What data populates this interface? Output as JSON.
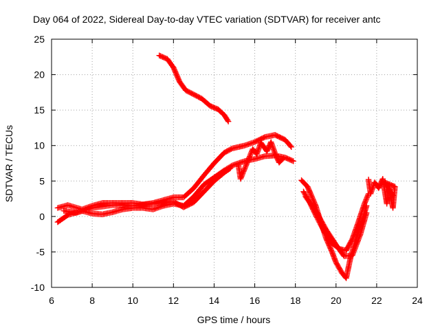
{
  "chart_data": {
    "type": "scatter",
    "title": "Day 064 of 2022, Sidereal Day-to-day VTEC variation (SDTVAR) for receiver antc",
    "xlabel": "GPS time / hours",
    "ylabel": "SDTVAR / TECUs",
    "xlim": [
      6,
      24
    ],
    "ylim": [
      -10,
      25
    ],
    "xticks": [
      6,
      8,
      10,
      12,
      14,
      16,
      18,
      20,
      22,
      24
    ],
    "yticks": [
      -10,
      -5,
      0,
      5,
      10,
      15,
      20,
      25
    ],
    "grid": true,
    "marker": "+",
    "color": "#ff0000",
    "series": [
      {
        "name": "high-arc",
        "x": [
          11.3,
          11.7,
          12.0,
          12.3,
          12.6,
          13.0,
          13.4,
          13.8,
          14.2,
          14.5,
          14.7
        ],
        "y": [
          22.7,
          22.2,
          21.0,
          19.0,
          17.8,
          17.2,
          16.6,
          15.6,
          15.1,
          14.3,
          13.4
        ]
      },
      {
        "name": "track-upper",
        "x": [
          6.3,
          6.8,
          7.5,
          8.0,
          8.5,
          9.0,
          9.5,
          10.0,
          10.5,
          11.0,
          11.5,
          12.0,
          12.5,
          13.0,
          13.5,
          14.0,
          14.5,
          14.9,
          15.5,
          16.0,
          16.5,
          17.0,
          17.5,
          17.8
        ],
        "y": [
          1.2,
          1.6,
          1.0,
          1.5,
          1.9,
          1.9,
          1.9,
          1.9,
          1.7,
          1.9,
          2.3,
          2.7,
          2.7,
          4.0,
          5.8,
          7.5,
          9.0,
          9.6,
          10.0,
          10.5,
          11.2,
          11.5,
          10.8,
          9.8
        ]
      },
      {
        "name": "track-lower",
        "x": [
          6.3,
          6.8,
          7.5,
          8.0,
          8.5,
          9.0,
          9.5,
          10.0,
          10.5,
          11.0,
          11.5,
          12.0,
          12.5,
          13.0,
          13.5,
          14.0,
          14.5,
          14.9,
          15.5,
          16.0,
          16.5,
          17.0,
          17.5,
          17.9
        ],
        "y": [
          -0.8,
          0.2,
          0.8,
          0.4,
          0.3,
          0.6,
          1.0,
          1.2,
          1.2,
          1.0,
          1.5,
          1.8,
          1.5,
          2.8,
          4.5,
          5.5,
          6.5,
          7.2,
          7.8,
          8.1,
          8.5,
          8.6,
          8.3,
          7.8
        ]
      },
      {
        "name": "mid-track",
        "x": [
          6.6,
          7.2,
          8.0,
          9.0,
          10.0,
          11.0,
          12.0,
          12.5,
          13.0,
          13.5,
          14.0,
          14.5,
          14.8
        ],
        "y": [
          0.8,
          0.5,
          1.2,
          1.6,
          1.5,
          1.8,
          2.1,
          1.3,
          2.0,
          3.5,
          5.0,
          6.2,
          6.8
        ]
      },
      {
        "name": "scatter-16",
        "x": [
          15.2,
          15.3,
          15.9,
          16.1,
          16.3,
          16.6,
          16.8,
          17.0,
          17.2,
          17.4
        ],
        "y": [
          7.2,
          5.3,
          9.5,
          8.8,
          10.4,
          9.2,
          10.5,
          8.9,
          7.6,
          8.2
        ]
      },
      {
        "name": "dip-outer",
        "x": [
          18.3,
          18.6,
          19.0,
          19.5,
          19.8,
          20.0,
          20.3,
          20.5,
          20.7,
          21.0,
          21.3,
          21.5
        ],
        "y": [
          5.1,
          4.2,
          1.5,
          -3.0,
          -5.0,
          -6.5,
          -8.0,
          -8.7,
          -6.0,
          -3.0,
          -0.5,
          1.5
        ]
      },
      {
        "name": "dip-inner",
        "x": [
          18.4,
          18.7,
          19.0,
          19.4,
          19.8,
          20.2,
          20.5,
          20.8,
          21.1,
          21.4,
          21.6
        ],
        "y": [
          3.5,
          2.0,
          0.2,
          -2.0,
          -3.8,
          -4.6,
          -4.8,
          -3.2,
          -0.8,
          1.8,
          3.2
        ]
      },
      {
        "name": "dip-mid",
        "x": [
          18.5,
          19.0,
          19.5,
          20.0,
          20.4,
          20.8,
          21.2,
          21.5
        ],
        "y": [
          2.8,
          0.8,
          -1.8,
          -4.0,
          -5.6,
          -5.5,
          -2.5,
          0.5
        ]
      },
      {
        "name": "late",
        "x": [
          21.6,
          21.7,
          21.9,
          22.1,
          22.3,
          22.5,
          22.6,
          22.8,
          22.9,
          22.4,
          22.8
        ],
        "y": [
          5.2,
          3.2,
          4.8,
          4.0,
          5.3,
          1.8,
          3.9,
          1.2,
          4.2,
          4.8,
          3.0
        ]
      }
    ]
  }
}
